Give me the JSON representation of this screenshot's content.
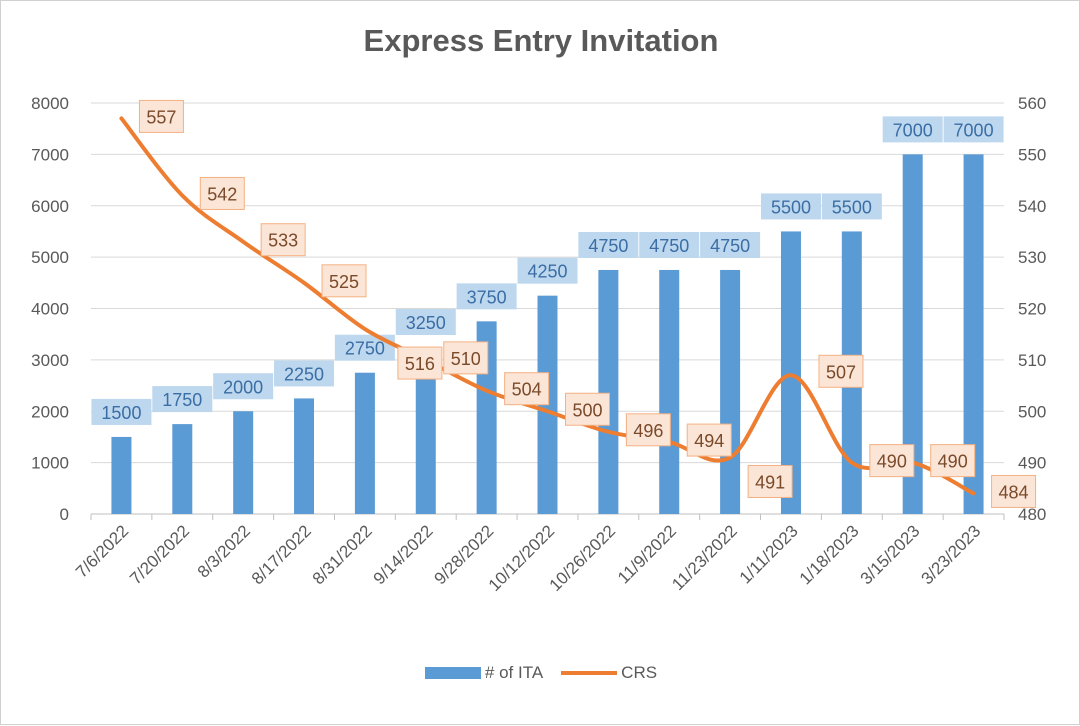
{
  "chart_data": {
    "type": "bar",
    "title": "Express Entry Invitation",
    "categories": [
      "7/6/2022",
      "7/20/2022",
      "8/3/2022",
      "8/17/2022",
      "8/31/2022",
      "9/14/2022",
      "9/28/2022",
      "10/12/2022",
      "10/26/2022",
      "11/9/2022",
      "11/23/2022",
      "1/11/2023",
      "1/18/2023",
      "3/15/2023",
      "3/23/2023"
    ],
    "series": [
      {
        "name": "# of ITA",
        "type": "bar",
        "axis": "left",
        "color": "#5b9bd5",
        "values": [
          1500,
          1750,
          2000,
          2250,
          2750,
          3250,
          3750,
          4250,
          4750,
          4750,
          4750,
          5500,
          5500,
          7000,
          7000
        ]
      },
      {
        "name": "CRS",
        "type": "line",
        "axis": "right",
        "color": "#ed7d31",
        "values": [
          557,
          542,
          533,
          525,
          516,
          510,
          504,
          500,
          496,
          494,
          491,
          507,
          490,
          490,
          484
        ]
      }
    ],
    "y_left": {
      "min": 0,
      "max": 8000,
      "ticks": [
        "0",
        "1000",
        "2000",
        "3000",
        "4000",
        "5000",
        "6000",
        "7000",
        "8000"
      ]
    },
    "y_right": {
      "min": 480,
      "max": 560,
      "ticks": [
        "480",
        "490",
        "500",
        "510",
        "520",
        "530",
        "540",
        "550",
        "560"
      ]
    },
    "grid": true,
    "legend": "bottom"
  }
}
